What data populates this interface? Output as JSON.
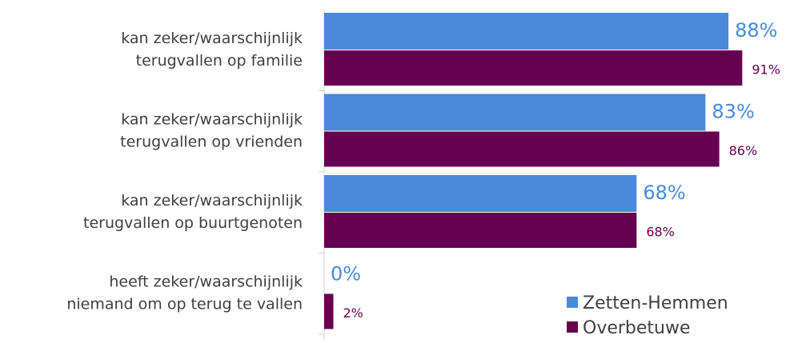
{
  "chart_data": {
    "type": "hbar",
    "categories": [
      "kan zeker/waarschijnlijk\nterugvallen op familie",
      "kan zeker/waarschijnlijk\nterugvallen op vrienden",
      "kan zeker/waarschijnlijk\nterugvallen op buurtgenoten",
      "heeft zeker/waarschijnlijk\nniemand om op terug te vallen"
    ],
    "series": [
      {
        "name": "Zetten-Hemmen",
        "color": "#4a8ad8",
        "values": [
          88,
          83,
          68,
          0
        ],
        "value_labels": [
          "88%",
          "83%",
          "68%",
          "0%"
        ]
      },
      {
        "name": "Overbetuwe",
        "color": "#660050",
        "values": [
          91,
          86,
          68,
          2
        ],
        "value_labels": [
          "91%",
          "86%",
          "68%",
          "2%"
        ]
      }
    ],
    "xlim": [
      0,
      100
    ],
    "legend": "bottom-right"
  }
}
